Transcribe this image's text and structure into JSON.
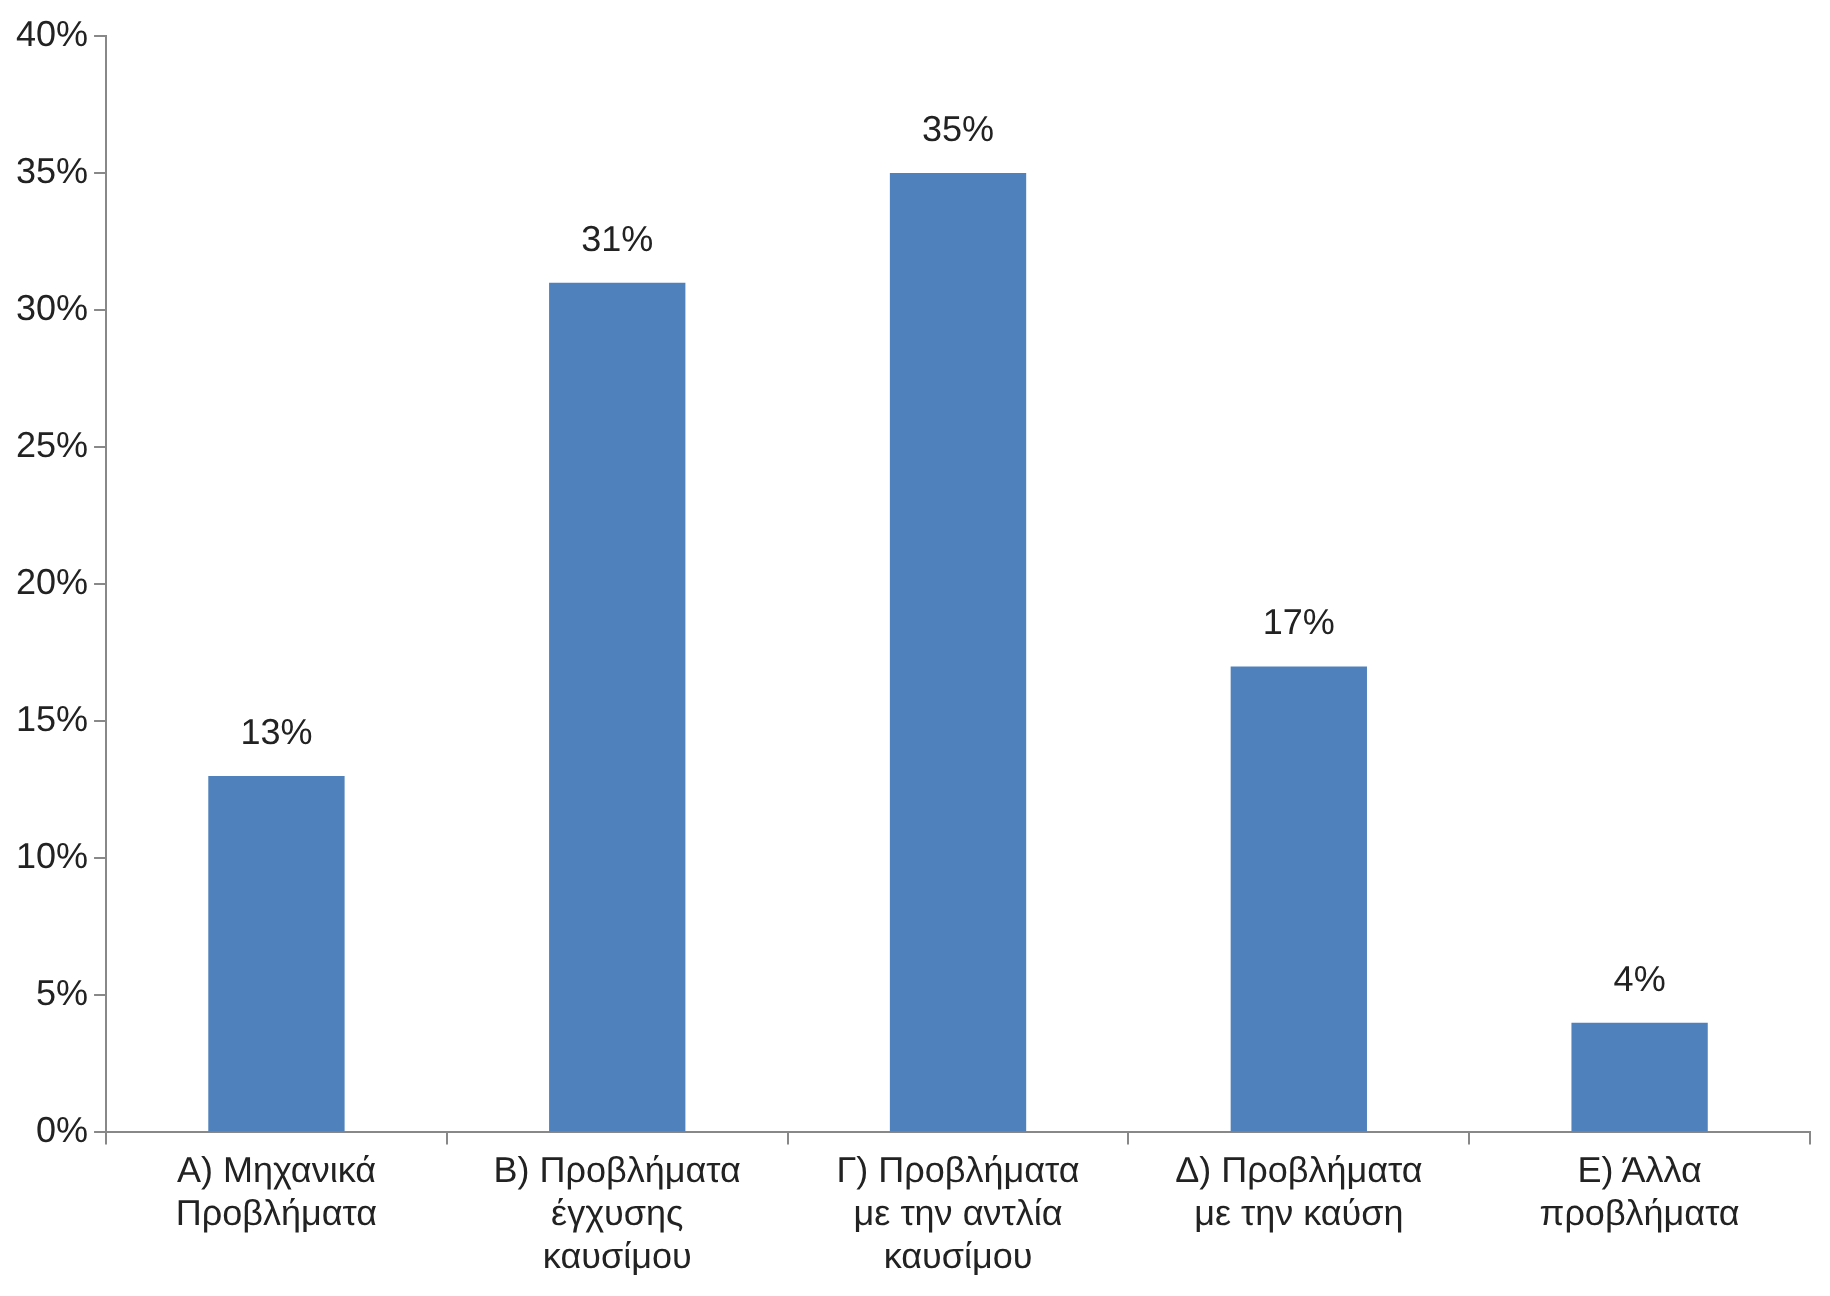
{
  "chart_data": {
    "type": "bar",
    "categories": [
      "Α) Μηχανικά Προβλήματα",
      "Β) Προβλήματα έγχυσης καυσίμου",
      "Γ) Προβλήματα με την αντλία καυσίμου",
      "Δ) Προβλήματα με την καύση",
      "Ε) Άλλα προβλήματα"
    ],
    "values": [
      13,
      31,
      35,
      17,
      4
    ],
    "value_labels": [
      "13%",
      "31%",
      "35%",
      "17%",
      "4%"
    ],
    "color": "#4f81bd",
    "ylim": [
      0,
      40
    ],
    "yticks": [
      {
        "value": 0,
        "label": "0%"
      },
      {
        "value": 5,
        "label": "5%"
      },
      {
        "value": 10,
        "label": "10%"
      },
      {
        "value": 15,
        "label": "15%"
      },
      {
        "value": 20,
        "label": "20%"
      },
      {
        "value": 25,
        "label": "25%"
      },
      {
        "value": 30,
        "label": "30%"
      },
      {
        "value": 35,
        "label": "35%"
      },
      {
        "value": 40,
        "label": "40%"
      }
    ],
    "legend": false
  }
}
